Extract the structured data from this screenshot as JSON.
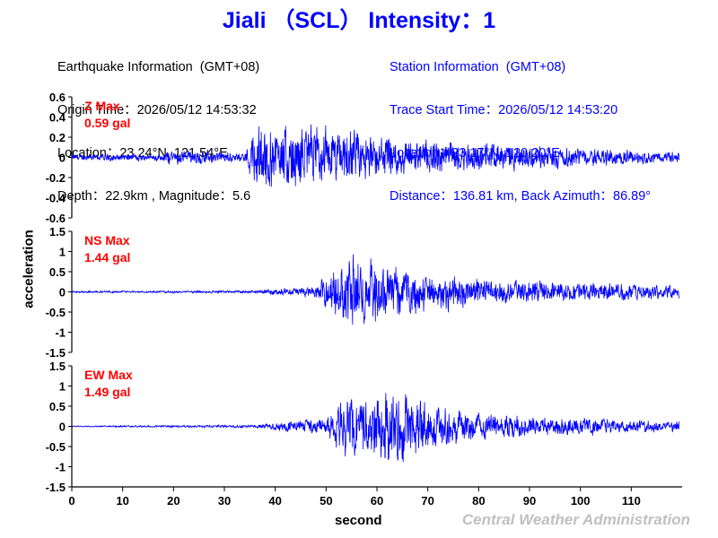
{
  "title": "Jiali （SCL） Intensity：1",
  "earthquake": {
    "heading": "Earthquake Information  (GMT+08)",
    "origin_time": "Origin Time：2026/05/12 14:53:32",
    "location": "Location：23.24°N, 121.54°E",
    "depth_magnitude": "Depth：22.9km , Magnitude：5.6"
  },
  "station": {
    "heading": "Station Information  (GMT+08)",
    "trace_start": "Trace Start Time：2026/05/12 14:53:20",
    "location": "Location：23.17°N, 120.20°E",
    "distance": "Distance：136.81 km, Back Azimuth：86.89°"
  },
  "footer": {
    "agency": "Central Weather Administration"
  },
  "colors": {
    "title": "#0000ff",
    "trace": "#0000ff",
    "max_label": "#ff0000",
    "agency": "#c0c0c0"
  },
  "chart_data": {
    "type": "line",
    "xlabel": "second",
    "ylabel": "acceleration",
    "xlim": [
      0,
      120
    ],
    "x_ticks": [
      0,
      10,
      20,
      30,
      40,
      50,
      60,
      70,
      80,
      90,
      100,
      110
    ],
    "panels": [
      {
        "name": "Z",
        "max_label": "Z Max",
        "max_value": "0.59 gal",
        "ylim": [
          -0.6,
          0.6
        ],
        "y_ticks": [
          0.6,
          0.4,
          0.2,
          0,
          -0.2,
          -0.4,
          -0.6
        ],
        "y_tick_labels": [
          "0.6",
          "0.4",
          "0.2",
          "0",
          "-0.2",
          "-0.4",
          "-0.6"
        ],
        "envelope": {
          "t": [
            0,
            18,
            19,
            34,
            36,
            37,
            40,
            45,
            55,
            60,
            70,
            80,
            90,
            100,
            110,
            119.5
          ],
          "amp": [
            0.05,
            0.05,
            0.12,
            0.06,
            0.45,
            0.59,
            0.42,
            0.45,
            0.4,
            0.3,
            0.25,
            0.2,
            0.17,
            0.14,
            0.1,
            0.08
          ]
        }
      },
      {
        "name": "NS",
        "max_label": "NS Max",
        "max_value": "1.44 gal",
        "ylim": [
          -1.5,
          1.5
        ],
        "y_ticks": [
          1.5,
          1,
          0.5,
          0,
          -0.5,
          -1,
          -1.5
        ],
        "y_tick_labels": [
          "1.5",
          "1",
          "0.5",
          "0",
          "-0.5",
          "-1",
          "-1.5"
        ],
        "envelope": {
          "t": [
            0,
            36,
            40,
            48,
            52,
            54,
            58,
            62,
            70,
            80,
            90,
            100,
            110,
            119.5
          ],
          "amp": [
            0.03,
            0.05,
            0.12,
            0.2,
            0.9,
            1.44,
            1.2,
            1.0,
            0.7,
            0.5,
            0.4,
            0.35,
            0.3,
            0.22
          ]
        }
      },
      {
        "name": "EW",
        "max_label": "EW Max",
        "max_value": "1.49 gal",
        "ylim": [
          -1.5,
          1.5
        ],
        "y_ticks": [
          1.5,
          1,
          0.5,
          0,
          -0.5,
          -1,
          -1.5
        ],
        "y_tick_labels": [
          "1.5",
          "1",
          "0.5",
          "0",
          "-0.5",
          "-1",
          "-1.5"
        ],
        "envelope": {
          "t": [
            0,
            36,
            40,
            50,
            53,
            58,
            62,
            70,
            80,
            90,
            100,
            110,
            119.5
          ],
          "amp": [
            0.02,
            0.05,
            0.15,
            0.3,
            1.0,
            1.2,
            1.49,
            0.9,
            0.5,
            0.35,
            0.3,
            0.25,
            0.18
          ]
        }
      }
    ]
  }
}
